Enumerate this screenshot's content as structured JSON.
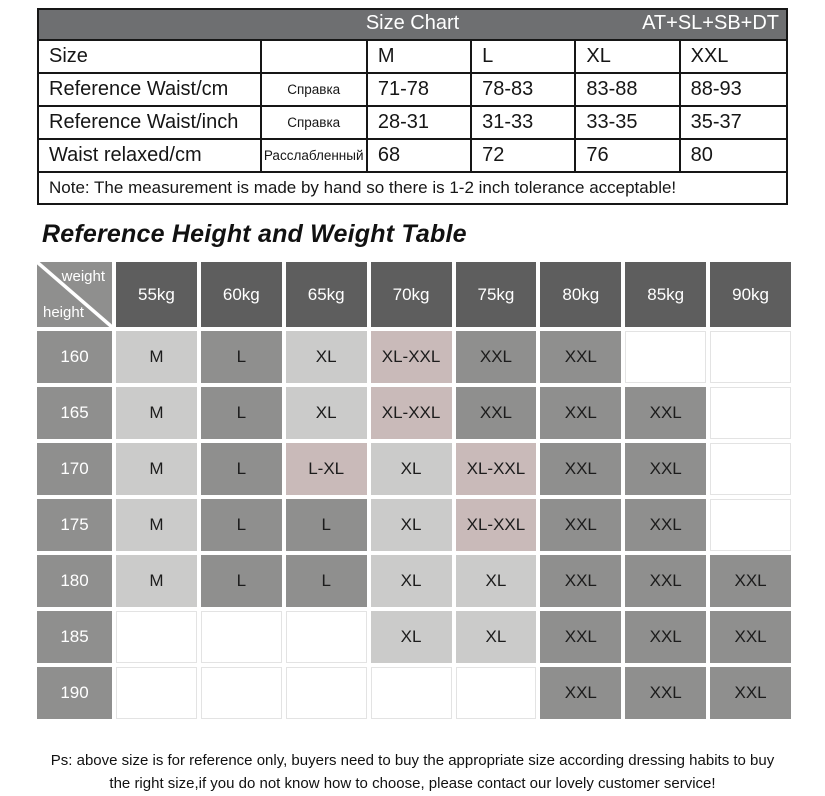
{
  "size_chart": {
    "header": {
      "title": "Size Chart",
      "code": "AT+SL+SB+DT"
    },
    "rows": [
      {
        "label": "Size",
        "note": "",
        "values": [
          "M",
          "L",
          "XL",
          "XXL"
        ]
      },
      {
        "label": "Reference Waist/cm",
        "note": "Справка",
        "values": [
          "71-78",
          "78-83",
          "83-88",
          "88-93"
        ]
      },
      {
        "label": "Reference Waist/inch",
        "note": "Справка",
        "values": [
          "28-31",
          "31-33",
          "33-35",
          "35-37"
        ]
      },
      {
        "label": "Waist relaxed/cm",
        "note": "Расслабленный",
        "values": [
          "68",
          "72",
          "76",
          "80"
        ]
      }
    ],
    "note": "Note: The measurement is made by hand so there is 1-2 inch tolerance acceptable!"
  },
  "hw_table": {
    "title": "Reference Height and Weight Table",
    "corner": {
      "top": "weight",
      "bottom": "height"
    },
    "weights": [
      "55kg",
      "60kg",
      "65kg",
      "70kg",
      "75kg",
      "80kg",
      "85kg",
      "90kg"
    ],
    "heights": [
      "160",
      "165",
      "170",
      "175",
      "180",
      "185",
      "190"
    ],
    "cells": [
      [
        "M",
        "L",
        "XL",
        "XL-XXL",
        "XXL",
        "XXL",
        "",
        ""
      ],
      [
        "M",
        "L",
        "XL",
        "XL-XXL",
        "XXL",
        "XXL",
        "XXL",
        ""
      ],
      [
        "M",
        "L",
        "L-XL",
        "XL",
        "XL-XXL",
        "XXL",
        "XXL",
        ""
      ],
      [
        "M",
        "L",
        "L",
        "XL",
        "XL-XXL",
        "XXL",
        "XXL",
        ""
      ],
      [
        "M",
        "L",
        "L",
        "XL",
        "XL",
        "XXL",
        "XXL",
        "XXL"
      ],
      [
        "",
        "",
        "",
        "XL",
        "XL",
        "XXL",
        "XXL",
        "XXL"
      ],
      [
        "",
        "",
        "",
        "",
        "",
        "XXL",
        "XXL",
        "XXL"
      ]
    ]
  },
  "footer": {
    "line1": "Ps: above size is for reference only, buyers need to buy the appropriate size according dressing habits to buy",
    "line2": "the right size,if you do not know how to choose, please contact our lovely customer service!"
  },
  "colors": {
    "table_header_bg": "#6e6f71",
    "weight_header_bg": "#5e5e5e",
    "dark_cell_bg": "#8f8f8e",
    "light_cell_bg": "#cbcbca",
    "mixed_size_cell_bg": "#c9bab9",
    "border_black": "#161616"
  }
}
